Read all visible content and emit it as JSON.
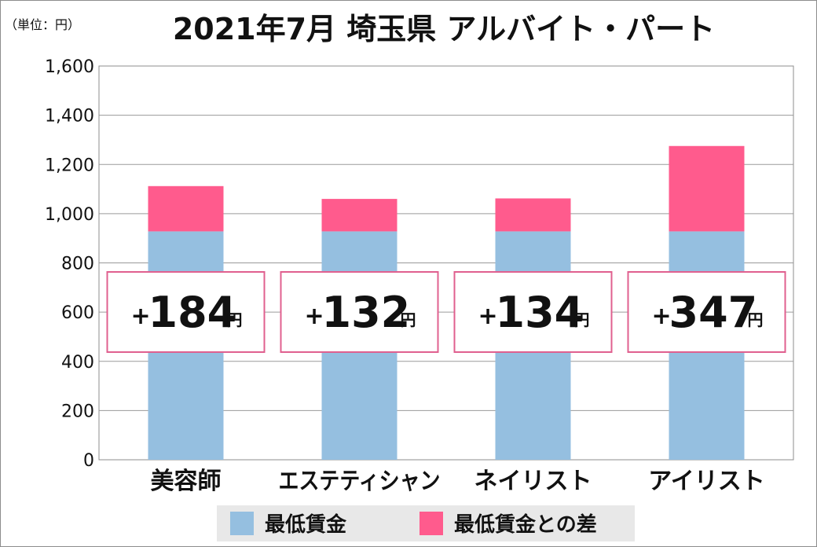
{
  "unit_label": "（単位：円）",
  "title": "2021年7月 埼玉県 アルバイト・パート",
  "chart_data": {
    "type": "bar",
    "stacked": true,
    "categories": [
      "美容師",
      "エステティシャン",
      "ネイリスト",
      "アイリスト"
    ],
    "series": [
      {
        "name": "最低賃金",
        "color": "#95bfe0",
        "values": [
          928,
          928,
          928,
          928
        ]
      },
      {
        "name": "最低賃金との差",
        "color": "#ff5b8d",
        "values": [
          184,
          132,
          134,
          347
        ]
      }
    ],
    "ylim": [
      0,
      1600
    ],
    "yticks": [
      0,
      200,
      400,
      600,
      800,
      1000,
      1200,
      1400,
      1600
    ],
    "ytick_labels": [
      "0",
      "200",
      "400",
      "600",
      "800",
      "1,000",
      "1,200",
      "1,400",
      "1,600"
    ],
    "grid": true,
    "legend_position": "bottom",
    "annotations": [
      {
        "plus": "+",
        "value": "184",
        "unit": "円"
      },
      {
        "plus": "+",
        "value": "132",
        "unit": "円"
      },
      {
        "plus": "+",
        "value": "134",
        "unit": "円"
      },
      {
        "plus": "+",
        "value": "347",
        "unit": "円"
      }
    ]
  }
}
